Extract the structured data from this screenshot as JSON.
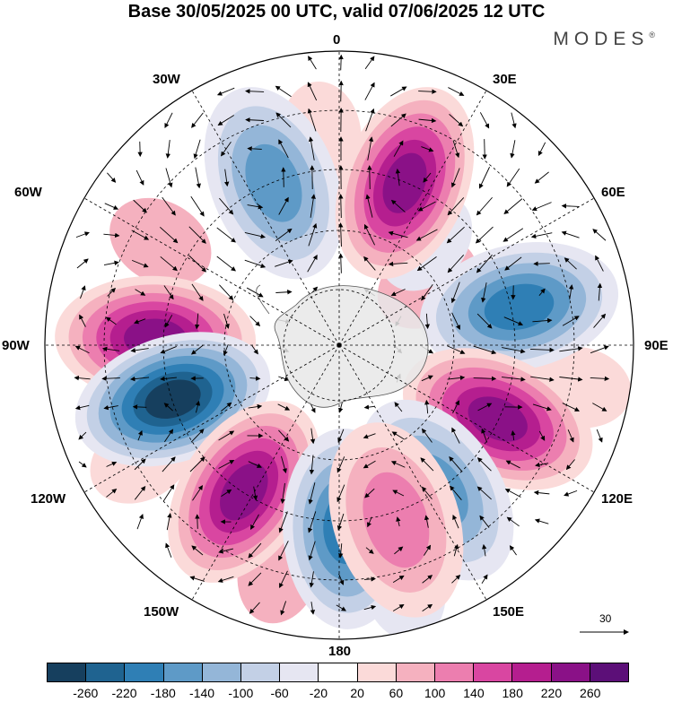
{
  "title": "Base 30/05/2025 00 UTC, valid 07/06/2025 12 UTC",
  "brand": "MODES",
  "brand_mark": "®",
  "longitude_labels": [
    "0",
    "30E",
    "60E",
    "90E",
    "120E",
    "150E",
    "180",
    "150W",
    "120W",
    "90W",
    "60W",
    "30W"
  ],
  "vector_scale_label": "30",
  "colorbar": {
    "colors": [
      "#163f5e",
      "#1f6390",
      "#2f7fb5",
      "#5e9ac7",
      "#94b6d8",
      "#c3d0e6",
      "#e6e6f2",
      "#ffffff",
      "#fbdad9",
      "#f5b1bf",
      "#ec7eaf",
      "#d946a1",
      "#b51e8f",
      "#8a1187",
      "#5c0f78"
    ],
    "labels": [
      "-260",
      "-220",
      "-180",
      "-140",
      "-100",
      "-60",
      "-20",
      "20",
      "60",
      "100",
      "140",
      "180",
      "220",
      "260"
    ]
  },
  "projection": "south polar stereographic",
  "anomaly_centers": [
    {
      "lon": -88,
      "value": 240
    },
    {
      "lon": -108,
      "value": -260
    },
    {
      "lon": -147,
      "value": 250
    },
    {
      "lon": 178,
      "value": -200
    },
    {
      "lon": -22,
      "value": -170
    },
    {
      "lon": 22,
      "value": 230
    },
    {
      "lon": 78,
      "value": -210
    },
    {
      "lon": 115,
      "value": 230
    },
    {
      "lon": 146,
      "value": -170
    },
    {
      "lon": 162,
      "value": 120
    }
  ]
}
